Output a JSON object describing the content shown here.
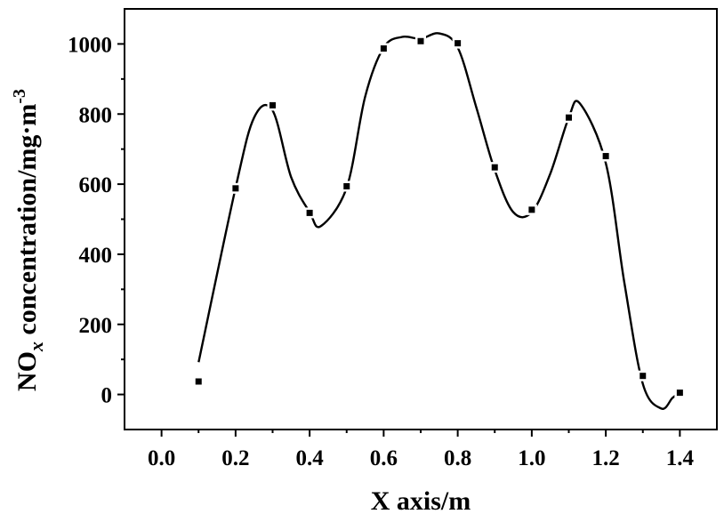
{
  "chart_data": {
    "type": "scatter",
    "xlabel": "X axis/m",
    "ylabel": {
      "main": "NO",
      "subscript": "x",
      "rest": " concentration/mg·m",
      "superscript": "-3"
    },
    "xlim": [
      -0.1,
      1.5
    ],
    "ylim": [
      -100,
      1100
    ],
    "xticks": [
      "0.0",
      "0.2",
      "0.4",
      "0.6",
      "0.8",
      "1.0",
      "1.2",
      "1.4"
    ],
    "yticks": [
      "0",
      "200",
      "400",
      "600",
      "800",
      "1000"
    ],
    "grid": false,
    "series": [
      {
        "style": "square-markers",
        "x": [
          0.1,
          0.2,
          0.3,
          0.4,
          0.5,
          0.6,
          0.7,
          0.8,
          0.9,
          1.0,
          1.1,
          1.2,
          1.3,
          1.4
        ],
        "y": [
          37,
          588,
          825,
          518,
          594,
          987,
          1008,
          1002,
          648,
          527,
          790,
          680,
          53,
          5
        ]
      },
      {
        "style": "smooth-line",
        "x": [
          0.1,
          0.2,
          0.25,
          0.3,
          0.35,
          0.4,
          0.43,
          0.5,
          0.55,
          0.6,
          0.65,
          0.7,
          0.75,
          0.8,
          0.85,
          0.9,
          0.95,
          1.0,
          1.05,
          1.1,
          1.13,
          1.2,
          1.25,
          1.3,
          1.35,
          1.38,
          1.4
        ],
        "y": [
          92,
          590,
          790,
          810,
          620,
          520,
          480,
          590,
          850,
          990,
          1020,
          1015,
          1030,
          990,
          820,
          640,
          520,
          520,
          630,
          790,
          830,
          660,
          320,
          30,
          -40,
          -10,
          5
        ]
      }
    ]
  }
}
